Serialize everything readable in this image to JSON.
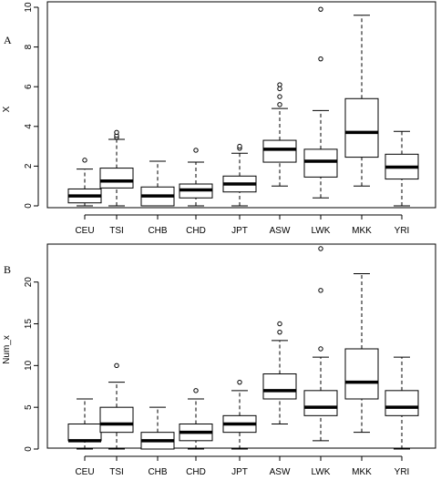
{
  "chart_data": [
    {
      "type": "boxplot",
      "panel_label": "A",
      "ylabel": "X",
      "ylim": [
        0,
        10
      ],
      "yticks": [
        "0",
        "2",
        "4",
        "6",
        "8",
        "10"
      ],
      "categories": [
        "CEU",
        "TSI",
        "CHB",
        "CHD",
        "JPT",
        "ASW",
        "LWK",
        "MKK",
        "YRI"
      ],
      "boxes": [
        {
          "min": 0.0,
          "q1": 0.15,
          "median": 0.5,
          "q3": 0.85,
          "max": 1.85,
          "outliers": [
            2.3
          ]
        },
        {
          "min": 0.0,
          "q1": 0.9,
          "median": 1.25,
          "q3": 1.9,
          "max": 3.35,
          "outliers": [
            3.45,
            3.55,
            3.7
          ]
        },
        {
          "min": 0.0,
          "q1": 0.0,
          "median": 0.5,
          "q3": 0.95,
          "max": 2.25,
          "outliers": []
        },
        {
          "min": 0.0,
          "q1": 0.4,
          "median": 0.8,
          "q3": 1.1,
          "max": 2.2,
          "outliers": [
            2.8
          ]
        },
        {
          "min": 0.0,
          "q1": 0.7,
          "median": 1.1,
          "q3": 1.5,
          "max": 2.65,
          "outliers": [
            2.9,
            3.0
          ]
        },
        {
          "min": 1.0,
          "q1": 2.2,
          "median": 2.85,
          "q3": 3.3,
          "max": 4.9,
          "outliers": [
            5.1,
            5.5,
            5.9,
            6.1
          ]
        },
        {
          "min": 0.4,
          "q1": 1.45,
          "median": 2.25,
          "q3": 2.85,
          "max": 4.8,
          "outliers": [
            7.4,
            9.9
          ]
        },
        {
          "min": 1.0,
          "q1": 2.45,
          "median": 3.7,
          "q3": 5.4,
          "max": 9.6,
          "outliers": []
        },
        {
          "min": 0.0,
          "q1": 1.35,
          "median": 1.95,
          "q3": 2.6,
          "max": 3.75,
          "outliers": []
        }
      ]
    },
    {
      "type": "boxplot",
      "panel_label": "B",
      "ylabel": "Num_x",
      "ylim": [
        0,
        24
      ],
      "yticks": [
        "0",
        "5",
        "10",
        "15",
        "20"
      ],
      "categories": [
        "CEU",
        "TSI",
        "CHB",
        "CHD",
        "JPT",
        "ASW",
        "LWK",
        "MKK",
        "YRI"
      ],
      "boxes": [
        {
          "min": 0,
          "q1": 1,
          "median": 1,
          "q3": 3,
          "max": 6,
          "outliers": []
        },
        {
          "min": 0,
          "q1": 2,
          "median": 3,
          "q3": 5,
          "max": 8,
          "outliers": [
            10
          ]
        },
        {
          "min": 0,
          "q1": 0,
          "median": 1,
          "q3": 2,
          "max": 5,
          "outliers": []
        },
        {
          "min": 0,
          "q1": 1,
          "median": 2,
          "q3": 3,
          "max": 6,
          "outliers": [
            7
          ]
        },
        {
          "min": 0,
          "q1": 2,
          "median": 3,
          "q3": 4,
          "max": 7,
          "outliers": [
            8
          ]
        },
        {
          "min": 3,
          "q1": 6,
          "median": 7,
          "q3": 9,
          "max": 13,
          "outliers": [
            14,
            15
          ]
        },
        {
          "min": 1,
          "q1": 4,
          "median": 5,
          "q3": 7,
          "max": 11,
          "outliers": [
            12,
            19,
            24
          ]
        },
        {
          "min": 2,
          "q1": 6,
          "median": 8,
          "q3": 12,
          "max": 21,
          "outliers": []
        },
        {
          "min": 0,
          "q1": 4,
          "median": 5,
          "q3": 7,
          "max": 11,
          "outliers": []
        }
      ]
    }
  ]
}
